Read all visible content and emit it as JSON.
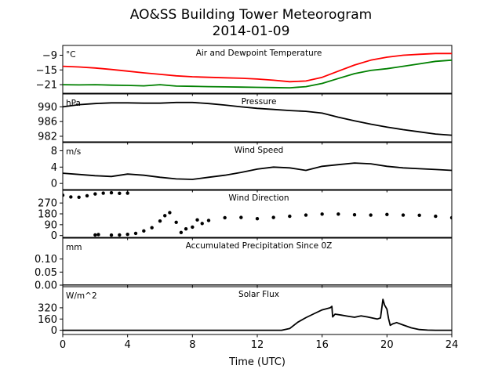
{
  "figure": {
    "title": "AO&SS Building Tower Meteorogram",
    "subtitle": "2014-01-09",
    "xlabel": "Time (UTC)"
  },
  "chart_data": [
    {
      "type": "line",
      "title": "Air and Dewpoint Temperature",
      "unit": "°C",
      "xlim": [
        0,
        24
      ],
      "ylim": [
        -24.5,
        -5.0
      ],
      "yticks": [
        -9,
        -15,
        -21
      ],
      "series": [
        {
          "color": "#ff0000",
          "x": [
            0,
            1,
            2,
            3,
            4,
            5,
            6,
            7,
            8,
            9,
            10,
            11,
            12,
            13,
            14,
            15,
            16,
            17,
            18,
            19,
            20,
            21,
            22,
            23,
            24
          ],
          "y": [
            -13.5,
            -13.8,
            -14.2,
            -14.8,
            -15.5,
            -16.2,
            -16.8,
            -17.4,
            -17.8,
            -18.0,
            -18.2,
            -18.4,
            -18.7,
            -19.2,
            -19.8,
            -19.5,
            -18.0,
            -15.5,
            -13.0,
            -11.0,
            -9.8,
            -9.0,
            -8.6,
            -8.3,
            -8.3
          ]
        },
        {
          "color": "#008000",
          "x": [
            0,
            1,
            2,
            3,
            4,
            5,
            6,
            7,
            8,
            9,
            10,
            11,
            12,
            13,
            14,
            15,
            16,
            17,
            18,
            19,
            20,
            21,
            22,
            23,
            24
          ],
          "y": [
            -21.0,
            -21.1,
            -21.0,
            -21.2,
            -21.3,
            -21.5,
            -21.0,
            -21.6,
            -21.7,
            -21.8,
            -21.9,
            -22.0,
            -22.1,
            -22.2,
            -22.3,
            -21.8,
            -20.5,
            -18.5,
            -16.5,
            -15.2,
            -14.5,
            -13.5,
            -12.5,
            -11.5,
            -11.0
          ]
        }
      ]
    },
    {
      "type": "line",
      "title": "Pressure",
      "unit": "hPa",
      "xlim": [
        0,
        24
      ],
      "ylim": [
        980.5,
        993.5
      ],
      "yticks": [
        990,
        986,
        982
      ],
      "series": [
        {
          "color": "#000000",
          "x": [
            0,
            1,
            2,
            3,
            4,
            5,
            6,
            7,
            8,
            9,
            10,
            11,
            12,
            13,
            14,
            15,
            16,
            17,
            18,
            19,
            20,
            21,
            22,
            23,
            24
          ],
          "y": [
            990.0,
            990.6,
            990.9,
            991.1,
            991.1,
            991.0,
            991.0,
            991.2,
            991.2,
            990.9,
            990.5,
            990.0,
            989.6,
            989.3,
            989.0,
            988.8,
            988.3,
            987.2,
            986.2,
            985.3,
            984.5,
            983.8,
            983.2,
            982.6,
            982.3
          ]
        }
      ]
    },
    {
      "type": "line",
      "title": "Wind Speed",
      "unit": "m/s",
      "xlim": [
        0,
        24
      ],
      "ylim": [
        -1.5,
        10.0
      ],
      "yticks": [
        8,
        4,
        0
      ],
      "series": [
        {
          "color": "#000000",
          "x": [
            0,
            1,
            2,
            3,
            4,
            5,
            6,
            7,
            8,
            9,
            10,
            11,
            12,
            13,
            14,
            15,
            16,
            17,
            18,
            19,
            20,
            21,
            22,
            23,
            24
          ],
          "y": [
            2.5,
            2.2,
            1.9,
            1.7,
            2.3,
            2.0,
            1.5,
            1.1,
            1.0,
            1.5,
            2.0,
            2.7,
            3.5,
            4.0,
            3.8,
            3.2,
            4.2,
            4.6,
            5.0,
            4.8,
            4.2,
            3.8,
            3.6,
            3.4,
            3.2
          ]
        }
      ]
    },
    {
      "type": "scatter",
      "title": "Wind Direction",
      "xlim": [
        0,
        24
      ],
      "ylim": [
        -15,
        375
      ],
      "yticks": [
        270,
        180,
        90,
        0
      ],
      "series": [
        {
          "color": "#000000",
          "x": [
            0.0,
            0.5,
            1.0,
            1.5,
            2.0,
            2.5,
            3.0,
            3.5,
            4.0,
            2.0,
            2.2,
            3.0,
            3.5,
            4.0,
            4.5,
            5.0,
            5.5,
            6.0,
            6.3,
            6.6,
            7.0,
            7.3,
            7.6,
            8.0,
            8.3,
            8.6,
            9.0,
            10.0,
            11.0,
            12.0,
            13.0,
            14.0,
            15.0,
            16.0,
            17.0,
            18.0,
            19.0,
            20.0,
            21.0,
            22.0,
            23.0,
            24.0
          ],
          "y": [
            335,
            320,
            318,
            330,
            345,
            352,
            355,
            350,
            352,
            5,
            8,
            4,
            5,
            10,
            18,
            38,
            65,
            120,
            165,
            190,
            110,
            25,
            55,
            70,
            130,
            100,
            125,
            148,
            150,
            140,
            150,
            160,
            170,
            178,
            178,
            172,
            170,
            175,
            170,
            168,
            160,
            148
          ]
        }
      ]
    },
    {
      "type": "line",
      "title": "Accumulated Precipitation Since 0Z",
      "unit": "mm",
      "xlim": [
        0,
        24
      ],
      "ylim": [
        0.0,
        0.18
      ],
      "yticks": [
        0.1,
        0.05,
        0.0
      ],
      "series": [
        {
          "color": "#000000",
          "x": [
            0,
            24
          ],
          "y": [
            0.0,
            0.0
          ]
        }
      ]
    },
    {
      "type": "line",
      "title": "Solar Flux",
      "unit": "W/m^2",
      "xlim": [
        0,
        24
      ],
      "ylim": [
        -60,
        620
      ],
      "yticks": [
        320,
        160,
        0
      ],
      "series": [
        {
          "color": "#000000",
          "x": [
            0,
            13.5,
            14.0,
            14.5,
            15.0,
            15.5,
            16.0,
            16.5,
            16.6,
            16.65,
            16.8,
            17.2,
            17.6,
            18.0,
            18.4,
            18.8,
            19.2,
            19.4,
            19.6,
            19.75,
            19.85,
            20.0,
            20.1,
            20.2,
            20.35,
            20.6,
            21.0,
            21.5,
            22.0,
            22.5,
            23.0,
            24.0
          ],
          "y": [
            0,
            0,
            25,
            115,
            180,
            235,
            290,
            320,
            340,
            190,
            230,
            215,
            200,
            185,
            205,
            190,
            170,
            160,
            175,
            440,
            360,
            300,
            165,
            70,
            90,
            110,
            75,
            35,
            10,
            2,
            0,
            0
          ]
        }
      ]
    }
  ]
}
